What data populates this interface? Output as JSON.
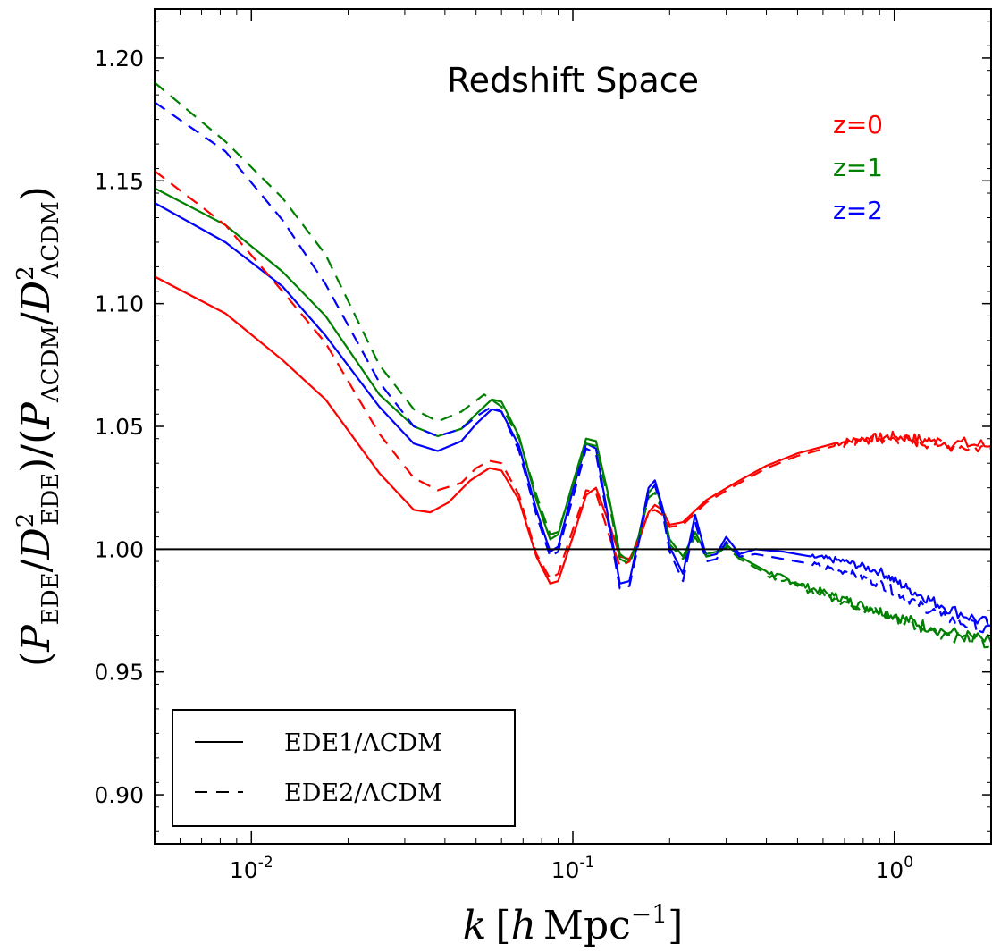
{
  "chart_data": {
    "type": "line",
    "title": "Redshift Space",
    "xlabel": "k [h Mpc⁻¹]",
    "ylabel": "(P_EDE/D²_EDE)/(P_ΛCDM/D²_ΛCDM)",
    "xscale": "log",
    "xlim": [
      0.005,
      2.0
    ],
    "ylim": [
      0.88,
      1.22
    ],
    "grid": false,
    "x_ticks": [
      {
        "value": 0.01,
        "base": "10",
        "exp": "-2"
      },
      {
        "value": 0.1,
        "base": "10",
        "exp": "-1"
      },
      {
        "value": 1.0,
        "base": "10",
        "exp": "0"
      }
    ],
    "y_ticks": [
      {
        "value": 0.9,
        "label": "0.90"
      },
      {
        "value": 0.95,
        "label": "0.95"
      },
      {
        "value": 1.0,
        "label": "1.00"
      },
      {
        "value": 1.05,
        "label": "1.05"
      },
      {
        "value": 1.1,
        "label": "1.10"
      },
      {
        "value": 1.15,
        "label": "1.15"
      },
      {
        "value": 1.2,
        "label": "1.20"
      }
    ],
    "reference_line": 1.0,
    "redshift_labels": [
      {
        "text": "z=0",
        "color": "#ff0000"
      },
      {
        "text": "z=1",
        "color": "#008000"
      },
      {
        "text": "z=2",
        "color": "#0000ff"
      }
    ],
    "legend": {
      "placement": "lower-left",
      "entries": [
        {
          "label": "EDE1/ΛCDM",
          "style": "solid"
        },
        {
          "label": "EDE2/ΛCDM",
          "style": "dashed"
        }
      ]
    },
    "series": [
      {
        "model": "EDE1",
        "z": "z=0",
        "style": "solid",
        "color": "#ff0000",
        "x": [
          0.005,
          0.0083,
          0.0125,
          0.017,
          0.025,
          0.032,
          0.036,
          0.041,
          0.048,
          0.055,
          0.06,
          0.068,
          0.077,
          0.085,
          0.09,
          0.1,
          0.11,
          0.118,
          0.13,
          0.14,
          0.15,
          0.16,
          0.172,
          0.18,
          0.19,
          0.2,
          0.22,
          0.26,
          0.32,
          0.4,
          0.5,
          0.65,
          0.8,
          1.0,
          1.3,
          2.0
        ],
        "y": [
          1.111,
          1.096,
          1.077,
          1.061,
          1.031,
          1.016,
          1.015,
          1.019,
          1.028,
          1.033,
          1.032,
          1.02,
          0.997,
          0.986,
          0.987,
          1.005,
          1.022,
          1.025,
          1.01,
          0.997,
          0.996,
          1.003,
          1.015,
          1.018,
          1.016,
          1.01,
          1.011,
          1.02,
          1.027,
          1.034,
          1.039,
          1.043,
          1.045,
          1.046,
          1.044,
          1.042
        ],
        "noise": 0.003,
        "noise_from": 0.6
      },
      {
        "model": "EDE1",
        "z": "z=1",
        "style": "solid",
        "color": "#008000",
        "x": [
          0.005,
          0.0083,
          0.0125,
          0.017,
          0.025,
          0.032,
          0.038,
          0.045,
          0.05,
          0.056,
          0.06,
          0.068,
          0.077,
          0.085,
          0.09,
          0.1,
          0.11,
          0.118,
          0.13,
          0.14,
          0.15,
          0.16,
          0.172,
          0.18,
          0.19,
          0.2,
          0.22,
          0.24,
          0.26,
          0.28,
          0.3,
          0.33,
          0.4,
          0.5,
          0.65,
          0.8,
          1.0,
          1.3,
          2.0
        ],
        "y": [
          1.147,
          1.132,
          1.113,
          1.095,
          1.063,
          1.05,
          1.046,
          1.049,
          1.055,
          1.061,
          1.06,
          1.046,
          1.02,
          1.004,
          1.006,
          1.027,
          1.045,
          1.044,
          1.02,
          0.998,
          0.995,
          1.005,
          1.023,
          1.026,
          1.017,
          1.004,
          0.997,
          1.007,
          0.998,
          0.999,
          1.002,
          0.997,
          0.991,
          0.986,
          0.981,
          0.977,
          0.973,
          0.968,
          0.962
        ],
        "noise": 0.0025,
        "noise_from": 0.4
      },
      {
        "model": "EDE1",
        "z": "z=2",
        "style": "solid",
        "color": "#0000ff",
        "x": [
          0.005,
          0.0083,
          0.0125,
          0.017,
          0.025,
          0.032,
          0.038,
          0.045,
          0.05,
          0.056,
          0.06,
          0.068,
          0.077,
          0.085,
          0.09,
          0.1,
          0.11,
          0.118,
          0.13,
          0.14,
          0.15,
          0.16,
          0.172,
          0.18,
          0.19,
          0.2,
          0.22,
          0.24,
          0.26,
          0.28,
          0.3,
          0.33,
          0.37,
          0.45,
          0.55,
          0.7,
          0.9,
          1.1,
          1.4,
          2.0
        ],
        "y": [
          1.141,
          1.125,
          1.107,
          1.087,
          1.058,
          1.043,
          1.04,
          1.044,
          1.051,
          1.057,
          1.056,
          1.042,
          1.016,
          0.999,
          1.001,
          1.024,
          1.043,
          1.041,
          1.01,
          0.986,
          0.987,
          1.004,
          1.025,
          1.028,
          1.017,
          1.001,
          0.99,
          1.014,
          0.997,
          0.998,
          1.005,
          0.998,
          1.0,
          0.999,
          0.997,
          0.995,
          0.991,
          0.984,
          0.977,
          0.969
        ],
        "noise": 0.0025,
        "noise_from": 0.5
      },
      {
        "model": "EDE2",
        "z": "z=0",
        "style": "dashed",
        "color": "#ff0000",
        "x": [
          0.005,
          0.0083,
          0.0125,
          0.017,
          0.025,
          0.032,
          0.038,
          0.045,
          0.05,
          0.055,
          0.06,
          0.068,
          0.077,
          0.085,
          0.09,
          0.1,
          0.11,
          0.118,
          0.13,
          0.14,
          0.15,
          0.16,
          0.172,
          0.18,
          0.19,
          0.2,
          0.22,
          0.26,
          0.32,
          0.4,
          0.5,
          0.65,
          0.8,
          1.0,
          1.3,
          2.0
        ],
        "y": [
          1.154,
          1.132,
          1.105,
          1.084,
          1.047,
          1.029,
          1.024,
          1.027,
          1.033,
          1.036,
          1.035,
          1.022,
          0.998,
          0.988,
          0.99,
          1.008,
          1.024,
          1.023,
          1.005,
          0.993,
          0.995,
          1.004,
          1.015,
          1.016,
          1.014,
          1.009,
          1.01,
          1.019,
          1.026,
          1.033,
          1.038,
          1.042,
          1.044,
          1.045,
          1.043,
          1.041
        ],
        "noise": 0.003,
        "noise_from": 0.6
      },
      {
        "model": "EDE2",
        "z": "z=1",
        "style": "dashed",
        "color": "#008000",
        "x": [
          0.005,
          0.0083,
          0.0125,
          0.017,
          0.025,
          0.032,
          0.038,
          0.045,
          0.053,
          0.06,
          0.068,
          0.077,
          0.085,
          0.09,
          0.1,
          0.11,
          0.118,
          0.13,
          0.14,
          0.15,
          0.16,
          0.172,
          0.18,
          0.19,
          0.2,
          0.22,
          0.24,
          0.26,
          0.28,
          0.3,
          0.33,
          0.4,
          0.5,
          0.65,
          0.8,
          1.0,
          1.3,
          2.0
        ],
        "y": [
          1.19,
          1.166,
          1.143,
          1.12,
          1.075,
          1.057,
          1.052,
          1.056,
          1.063,
          1.058,
          1.045,
          1.022,
          1.006,
          1.007,
          1.026,
          1.043,
          1.042,
          1.018,
          0.996,
          0.994,
          1.004,
          1.021,
          1.023,
          1.015,
          1.002,
          0.996,
          1.005,
          0.997,
          0.998,
          1.001,
          0.996,
          0.99,
          0.985,
          0.98,
          0.976,
          0.972,
          0.967,
          0.961
        ],
        "noise": 0.0025,
        "noise_from": 0.4
      },
      {
        "model": "EDE2",
        "z": "z=2",
        "style": "dashed",
        "color": "#0000ff",
        "x": [
          0.005,
          0.0083,
          0.0125,
          0.017,
          0.025,
          0.032,
          0.038,
          0.045,
          0.05,
          0.056,
          0.06,
          0.068,
          0.077,
          0.085,
          0.09,
          0.1,
          0.11,
          0.118,
          0.13,
          0.14,
          0.15,
          0.16,
          0.172,
          0.18,
          0.19,
          0.2,
          0.22,
          0.24,
          0.26,
          0.28,
          0.3,
          0.33,
          0.37,
          0.45,
          0.55,
          0.7,
          0.9,
          1.1,
          1.4,
          2.0
        ],
        "y": [
          1.182,
          1.162,
          1.134,
          1.108,
          1.068,
          1.05,
          1.046,
          1.049,
          1.054,
          1.058,
          1.056,
          1.04,
          1.014,
          0.997,
          0.999,
          1.021,
          1.041,
          1.039,
          1.008,
          0.984,
          0.985,
          1.002,
          1.023,
          1.026,
          1.015,
          0.999,
          0.987,
          1.011,
          0.995,
          0.996,
          1.003,
          0.997,
          0.998,
          0.996,
          0.994,
          0.991,
          0.986,
          0.98,
          0.973,
          0.966
        ],
        "noise": 0.0025,
        "noise_from": 0.5
      }
    ]
  }
}
